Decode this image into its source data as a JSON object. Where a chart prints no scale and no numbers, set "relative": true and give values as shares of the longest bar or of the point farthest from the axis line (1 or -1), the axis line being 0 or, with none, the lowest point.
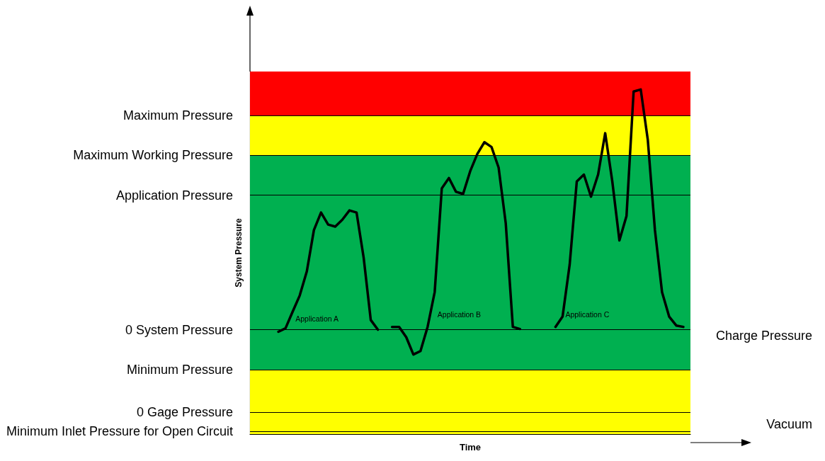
{
  "chart_data": {
    "type": "line",
    "relative": true,
    "xlabel": "Time",
    "ylabel": "System Pressure",
    "tick_labels": false,
    "marker": "none",
    "categories": [
      null,
      null,
      null,
      null,
      null,
      null,
      null,
      null,
      null,
      null,
      null,
      null,
      null,
      null,
      null,
      null,
      null,
      null,
      null,
      null,
      null,
      null,
      null,
      null,
      null,
      null,
      null,
      null,
      null,
      null,
      null,
      null,
      null,
      null,
      null,
      null,
      null,
      null,
      null,
      null,
      null,
      null,
      null,
      null,
      null,
      null,
      null,
      null,
      null,
      null,
      null,
      null,
      null,
      null,
      null,
      null,
      null,
      null,
      null,
      null,
      null,
      null,
      null
    ],
    "series": [
      {
        "name": "Application A",
        "color": "#000000",
        "values": [
          null,
          null,
          null,
          null,
          0.297,
          0.307,
          0.355,
          0.402,
          0.472,
          0.592,
          0.643,
          0.608,
          0.602,
          0.622,
          0.649,
          0.643,
          0.512,
          0.331,
          0.303,
          null,
          null,
          null,
          null,
          null,
          null,
          null,
          null,
          null,
          null,
          null,
          null,
          null,
          null,
          null,
          null,
          null,
          null,
          null,
          null,
          null,
          null,
          null,
          null,
          null,
          null,
          null,
          null,
          null,
          null,
          null,
          null,
          null,
          null,
          null,
          null,
          null,
          null,
          null,
          null,
          null,
          null,
          null,
          null
        ]
      },
      {
        "name": "Application B",
        "color": "#000000",
        "values": [
          null,
          null,
          null,
          null,
          null,
          null,
          null,
          null,
          null,
          null,
          null,
          null,
          null,
          null,
          null,
          null,
          null,
          null,
          null,
          null,
          0.311,
          0.311,
          0.281,
          0.231,
          0.241,
          0.311,
          0.412,
          0.713,
          0.743,
          0.703,
          0.697,
          0.763,
          0.813,
          0.847,
          0.833,
          0.773,
          0.612,
          0.311,
          0.305,
          null,
          null,
          null,
          null,
          null,
          null,
          null,
          null,
          null,
          null,
          null,
          null,
          null,
          null,
          null,
          null,
          null,
          null,
          null,
          null,
          null,
          null,
          null,
          null
        ]
      },
      {
        "name": "Application C",
        "color": "#000000",
        "values": [
          null,
          null,
          null,
          null,
          null,
          null,
          null,
          null,
          null,
          null,
          null,
          null,
          null,
          null,
          null,
          null,
          null,
          null,
          null,
          null,
          null,
          null,
          null,
          null,
          null,
          null,
          null,
          null,
          null,
          null,
          null,
          null,
          null,
          null,
          null,
          null,
          null,
          null,
          null,
          null,
          null,
          null,
          null,
          0.311,
          0.341,
          0.492,
          0.733,
          0.753,
          0.689,
          0.753,
          0.873,
          0.733,
          0.562,
          0.633,
          0.994,
          1.0,
          0.853,
          0.592,
          0.412,
          0.341,
          0.315,
          0.311,
          null
        ]
      }
    ],
    "bands": [
      {
        "axis": "y",
        "from": 0.924,
        "to": 1.052,
        "color": "#ff0000"
      },
      {
        "axis": "y",
        "from": 0.809,
        "to": 0.924,
        "color": "#ffff00"
      },
      {
        "axis": "y",
        "from": 0.187,
        "to": 0.809,
        "color": "#00b050"
      },
      {
        "axis": "y",
        "from": 0,
        "to": 0.187,
        "color": "#ffff00"
      }
    ],
    "ref_lines": [
      {
        "axis": "y",
        "value": 0.924,
        "label": "Maximum Pressure"
      },
      {
        "axis": "y",
        "value": 0.809,
        "label": "Maximum Working Pressure"
      },
      {
        "axis": "y",
        "value": 0.693,
        "label": "Application Pressure"
      },
      {
        "axis": "y",
        "value": 0.303,
        "label": "0 System Pressure"
      },
      {
        "axis": "y",
        "value": 0.187,
        "label": "Minimum Pressure"
      },
      {
        "axis": "y",
        "value": 0.064,
        "label": "0 Gage Pressure"
      },
      {
        "axis": "y",
        "value": 0.008,
        "label": "Minimum Inlet Pressure for Open Circuit"
      }
    ],
    "annotations": [
      "Charge Pressure",
      "Vacuum"
    ]
  }
}
